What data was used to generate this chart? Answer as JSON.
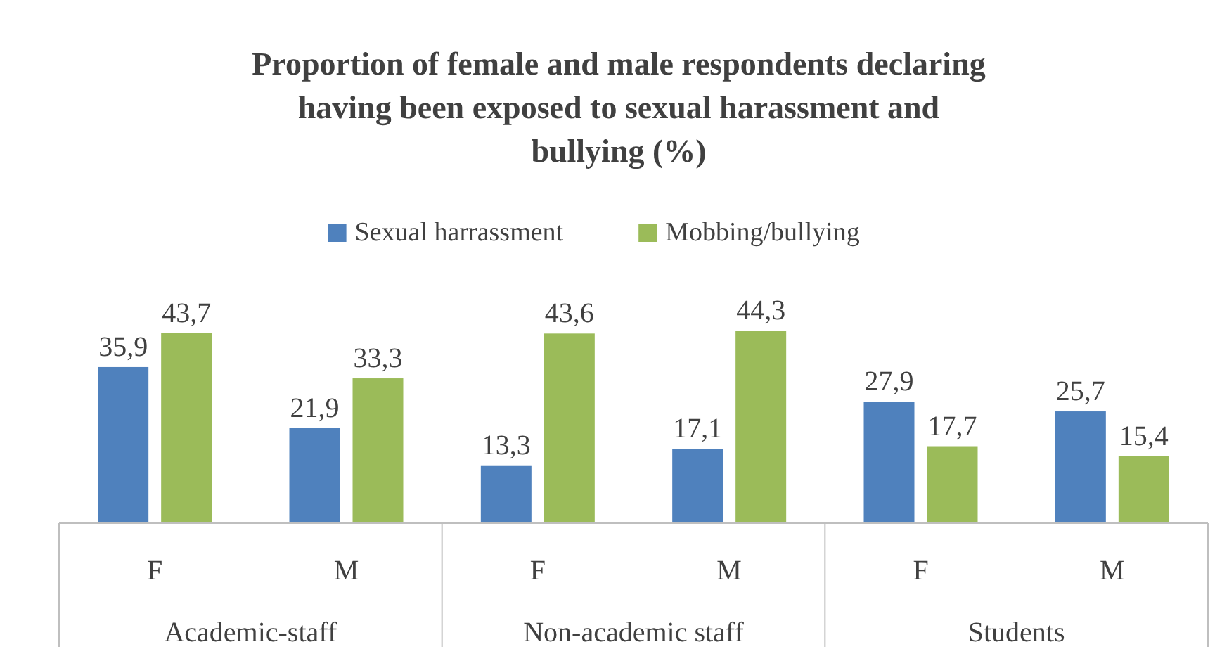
{
  "chart_data": {
    "type": "bar",
    "title": "Proportion of female and male respondents declaring having been exposed to sexual harassment and bullying (%)",
    "categories": [
      "F",
      "M",
      "F",
      "M",
      "F",
      "M"
    ],
    "annotations": [
      "Academic-staff",
      "Non-academic staff",
      "Students"
    ],
    "series": [
      {
        "name": "Sexual harrassment",
        "color": "#4f81bd",
        "values": [
          35.9,
          21.9,
          13.3,
          17.1,
          27.9,
          25.7
        ],
        "value_labels": [
          "35,9",
          "21,9",
          "13,3",
          "17,1",
          "27,9",
          "25,7"
        ]
      },
      {
        "name": "Mobbing/bullying",
        "color": "#9bbb59",
        "values": [
          43.7,
          33.3,
          43.6,
          44.3,
          17.7,
          15.4
        ],
        "value_labels": [
          "43,7",
          "33,3",
          "43,6",
          "44,3",
          "17,7",
          "15,4"
        ]
      }
    ],
    "legend": "top",
    "grid": false
  }
}
